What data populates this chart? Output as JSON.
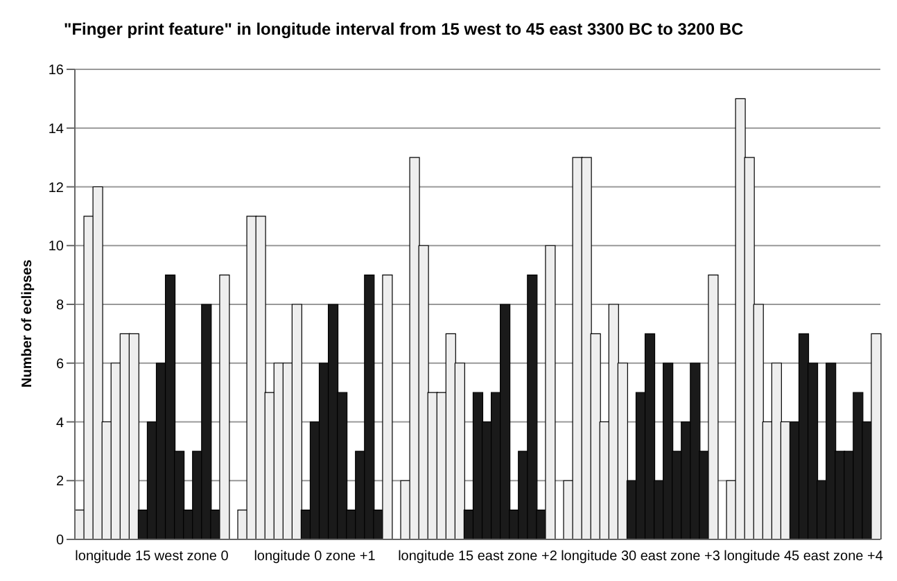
{
  "chart_data": {
    "type": "bar",
    "title": "\"Finger print feature\" in longitude interval from 15 west to 45 east  3300 BC to 3200 BC",
    "ylabel": "Number of eclipses",
    "categories": [
      null,
      null,
      null,
      null,
      null,
      null,
      null,
      null,
      "longitude 15 west zone 0",
      null,
      null,
      null,
      null,
      null,
      null,
      null,
      null,
      null,
      null,
      null,
      null,
      null,
      null,
      null,
      null,
      null,
      "longitude 0 zone +1",
      null,
      null,
      null,
      null,
      null,
      null,
      null,
      null,
      null,
      null,
      null,
      null,
      null,
      null,
      null,
      null,
      null,
      "longitude 15 east zone +2",
      null,
      null,
      null,
      null,
      null,
      null,
      null,
      null,
      null,
      null,
      null,
      null,
      null,
      null,
      null,
      null,
      null,
      "longitude 30 east zone +3",
      null,
      null,
      null,
      null,
      null,
      null,
      null,
      null,
      null,
      null,
      null,
      null,
      null,
      null,
      null,
      null,
      null,
      "longitude 45 east zone +4",
      null,
      null,
      null,
      null,
      null,
      null,
      null,
      null
    ],
    "values": [
      1,
      11,
      12,
      4,
      6,
      7,
      7,
      1,
      4,
      6,
      9,
      3,
      1,
      3,
      8,
      1,
      9,
      null,
      1,
      11,
      11,
      5,
      6,
      6,
      8,
      1,
      4,
      6,
      8,
      5,
      1,
      3,
      9,
      1,
      9,
      null,
      2,
      13,
      10,
      5,
      5,
      7,
      6,
      1,
      5,
      4,
      5,
      8,
      1,
      3,
      9,
      1,
      10,
      null,
      2,
      13,
      13,
      7,
      4,
      8,
      6,
      2,
      5,
      7,
      2,
      6,
      3,
      4,
      6,
      3,
      9,
      null,
      2,
      15,
      13,
      8,
      4,
      6,
      4,
      4,
      7,
      6,
      2,
      6,
      3,
      3,
      5,
      4,
      7
    ],
    "colors": [
      "#eeeeee",
      "#eeeeee",
      "#eeeeee",
      "#eeeeee",
      "#eeeeee",
      "#eeeeee",
      "#eeeeee",
      "#1a1a1a",
      "#1a1a1a",
      "#1a1a1a",
      "#1a1a1a",
      "#1a1a1a",
      "#1a1a1a",
      "#1a1a1a",
      "#1a1a1a",
      "#1a1a1a",
      "#eeeeee",
      null,
      "#eeeeee",
      "#eeeeee",
      "#eeeeee",
      "#eeeeee",
      "#eeeeee",
      "#eeeeee",
      "#eeeeee",
      "#1a1a1a",
      "#1a1a1a",
      "#1a1a1a",
      "#1a1a1a",
      "#1a1a1a",
      "#1a1a1a",
      "#1a1a1a",
      "#1a1a1a",
      "#1a1a1a",
      "#eeeeee",
      null,
      "#eeeeee",
      "#eeeeee",
      "#eeeeee",
      "#eeeeee",
      "#eeeeee",
      "#eeeeee",
      "#eeeeee",
      "#1a1a1a",
      "#1a1a1a",
      "#1a1a1a",
      "#1a1a1a",
      "#1a1a1a",
      "#1a1a1a",
      "#1a1a1a",
      "#1a1a1a",
      "#1a1a1a",
      "#eeeeee",
      null,
      "#eeeeee",
      "#eeeeee",
      "#eeeeee",
      "#eeeeee",
      "#eeeeee",
      "#eeeeee",
      "#eeeeee",
      "#1a1a1a",
      "#1a1a1a",
      "#1a1a1a",
      "#1a1a1a",
      "#1a1a1a",
      "#1a1a1a",
      "#1a1a1a",
      "#1a1a1a",
      "#1a1a1a",
      "#eeeeee",
      null,
      "#eeeeee",
      "#eeeeee",
      "#eeeeee",
      "#eeeeee",
      "#eeeeee",
      "#eeeeee",
      "#eeeeee",
      "#1a1a1a",
      "#1a1a1a",
      "#1a1a1a",
      "#1a1a1a",
      "#1a1a1a",
      "#1a1a1a",
      "#1a1a1a",
      "#1a1a1a",
      "#1a1a1a",
      "#eeeeee"
    ],
    "ylim": [
      0,
      16
    ],
    "yticks": [
      0,
      2,
      4,
      6,
      8,
      10,
      12,
      14,
      16
    ],
    "grid": "y"
  }
}
